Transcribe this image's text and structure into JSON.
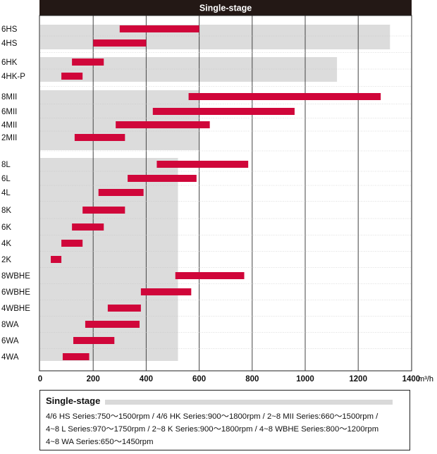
{
  "chart_data": {
    "type": "bar",
    "orientation": "horizontal",
    "title": "Single-stage",
    "unit": "m³/h",
    "xlim": [
      0,
      1400
    ],
    "x_ticks": [
      "0",
      "200",
      "400",
      "600",
      "800",
      "1000",
      "1200",
      "1400"
    ],
    "grid": true,
    "bar_color": "#d0063a",
    "band_color": "#dcdcdc",
    "groups": [
      {
        "band_end": 1320,
        "items": [
          {
            "label": "6HS",
            "start": 300,
            "end": 600
          },
          {
            "label": "4HS",
            "start": 200,
            "end": 400
          }
        ]
      },
      {
        "band_end": 1120,
        "items": [
          {
            "label": "6HK",
            "start": 120,
            "end": 240
          },
          {
            "label": "4HK-P",
            "start": 80,
            "end": 160
          }
        ]
      },
      {
        "band_end": 600,
        "items": [
          {
            "label": "8MII",
            "start": 560,
            "end": 1285
          },
          {
            "label": "6MII",
            "start": 425,
            "end": 960
          },
          {
            "label": "4MII",
            "start": 285,
            "end": 640
          },
          {
            "label": "2MII",
            "start": 130,
            "end": 320
          }
        ]
      },
      {
        "band_end": 520,
        "items": [
          {
            "label": "8L",
            "start": 440,
            "end": 785
          },
          {
            "label": "6L",
            "start": 330,
            "end": 590
          },
          {
            "label": "4L",
            "start": 220,
            "end": 390
          },
          {
            "label": "8K",
            "start": 160,
            "end": 320
          },
          {
            "label": "6K",
            "start": 120,
            "end": 240
          },
          {
            "label": "4K",
            "start": 80,
            "end": 160
          },
          {
            "label": "2K",
            "start": 40,
            "end": 80
          },
          {
            "label": "8WBHE",
            "start": 510,
            "end": 770
          },
          {
            "label": "6WBHE",
            "start": 380,
            "end": 570
          },
          {
            "label": "4WBHE",
            "start": 255,
            "end": 380
          },
          {
            "label": "8WA",
            "start": 170,
            "end": 375
          },
          {
            "label": "6WA",
            "start": 125,
            "end": 280
          },
          {
            "label": "4WA",
            "start": 85,
            "end": 185
          }
        ]
      }
    ]
  },
  "note": {
    "title": "Single-stage",
    "lines": [
      "4/6 HS Series:750～1500rpm / 4/6 HK Series:900～1800rpm / 2~8 MII Series:660～1500rpm /",
      "4~8 L Series:970～1750rpm / 2~8 K Series:900～1800rpm / 4~8 WBHE Series:800～1200rpm",
      "4~8 WA Series:650～1450rpm"
    ]
  }
}
